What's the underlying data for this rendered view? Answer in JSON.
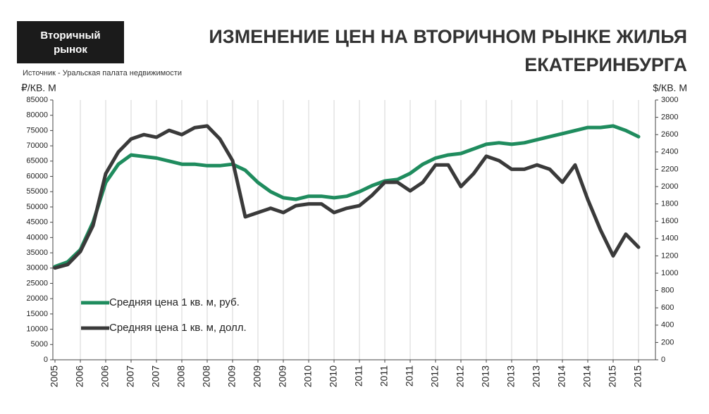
{
  "chart_data": {
    "type": "line",
    "badge": "Вторичный рынок",
    "title_lines": [
      "ИЗМЕНЕНИЕ ЦЕН НА ВТОРИЧНОМ РЫНКЕ ЖИЛЬЯ",
      "ЕКАТЕРИНБУРГА"
    ],
    "source": "Источник - Уральская палата недвижимости",
    "y_label": "₽/КВ. М",
    "y2_label": "$/КВ. М",
    "categories": [
      "2005",
      null,
      "2006",
      null,
      "2006",
      null,
      "2007",
      null,
      "2007",
      null,
      "2008",
      null,
      "2008",
      null,
      "2009",
      null,
      "2009",
      null,
      "2009",
      null,
      "2010",
      null,
      "2010",
      null,
      "2011",
      null,
      "2011",
      null,
      "2011",
      null,
      "2012",
      null,
      "2012",
      null,
      "2013",
      null,
      "2013",
      null,
      "2013",
      null,
      "2014",
      null,
      "2014",
      null,
      "2015",
      null,
      "2015"
    ],
    "series": [
      {
        "name": "Средняя цена 1 кв. м, руб.",
        "color": "#1f8c5e",
        "axis": "y",
        "values": [
          30500,
          32000,
          36000,
          45000,
          58000,
          64000,
          67000,
          66500,
          66000,
          65000,
          64000,
          64000,
          63500,
          63500,
          64000,
          62000,
          58000,
          55000,
          53000,
          52500,
          53500,
          53500,
          53000,
          53500,
          55000,
          57000,
          58500,
          59000,
          61000,
          64000,
          66000,
          67000,
          67500,
          69000,
          70500,
          71000,
          70500,
          71000,
          72000,
          73000,
          74000,
          75000,
          76000,
          76000,
          76500,
          75000,
          73000
        ]
      },
      {
        "name": "Средняя цена 1 кв. м, долл.",
        "color": "#3a3a3a",
        "axis": "y2",
        "values": [
          1060,
          1100,
          1250,
          1550,
          2150,
          2400,
          2550,
          2600,
          2570,
          2650,
          2600,
          2680,
          2700,
          2550,
          2300,
          1650,
          1700,
          1750,
          1700,
          1780,
          1800,
          1800,
          1700,
          1750,
          1780,
          1900,
          2050,
          2050,
          1950,
          2050,
          2250,
          2250,
          2000,
          2150,
          2350,
          2300,
          2200,
          2200,
          2250,
          2200,
          2050,
          2250,
          1850,
          1500,
          1200,
          1450,
          1300
        ]
      }
    ],
    "ylim": [
      0,
      85000
    ],
    "yticks": [
      0,
      5000,
      10000,
      15000,
      20000,
      25000,
      30000,
      35000,
      40000,
      45000,
      50000,
      55000,
      60000,
      65000,
      70000,
      75000,
      80000,
      85000
    ],
    "y2lim": [
      0,
      3000
    ],
    "y2ticks": [
      0,
      200,
      400,
      600,
      800,
      1000,
      1200,
      1400,
      1600,
      1800,
      2000,
      2200,
      2400,
      2600,
      2800,
      3000
    ],
    "grid": true,
    "legend": "lower left"
  }
}
